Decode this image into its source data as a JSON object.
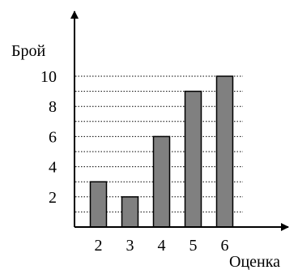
{
  "chart_data": {
    "type": "bar",
    "ylabel": "Брой",
    "xlabel": "Оценка",
    "categories": [
      "2",
      "3",
      "4",
      "5",
      "6"
    ],
    "values": [
      3,
      2,
      6,
      9,
      10
    ],
    "y_ticks": [
      "2",
      "4",
      "6",
      "8",
      "10"
    ],
    "ylim": [
      0,
      11
    ],
    "grid": "horizontal dotted, every 1 unit",
    "colors": {
      "bar_fill": "#808080",
      "bar_stroke": "#000000",
      "axis": "#000000",
      "grid": "#000000"
    }
  }
}
